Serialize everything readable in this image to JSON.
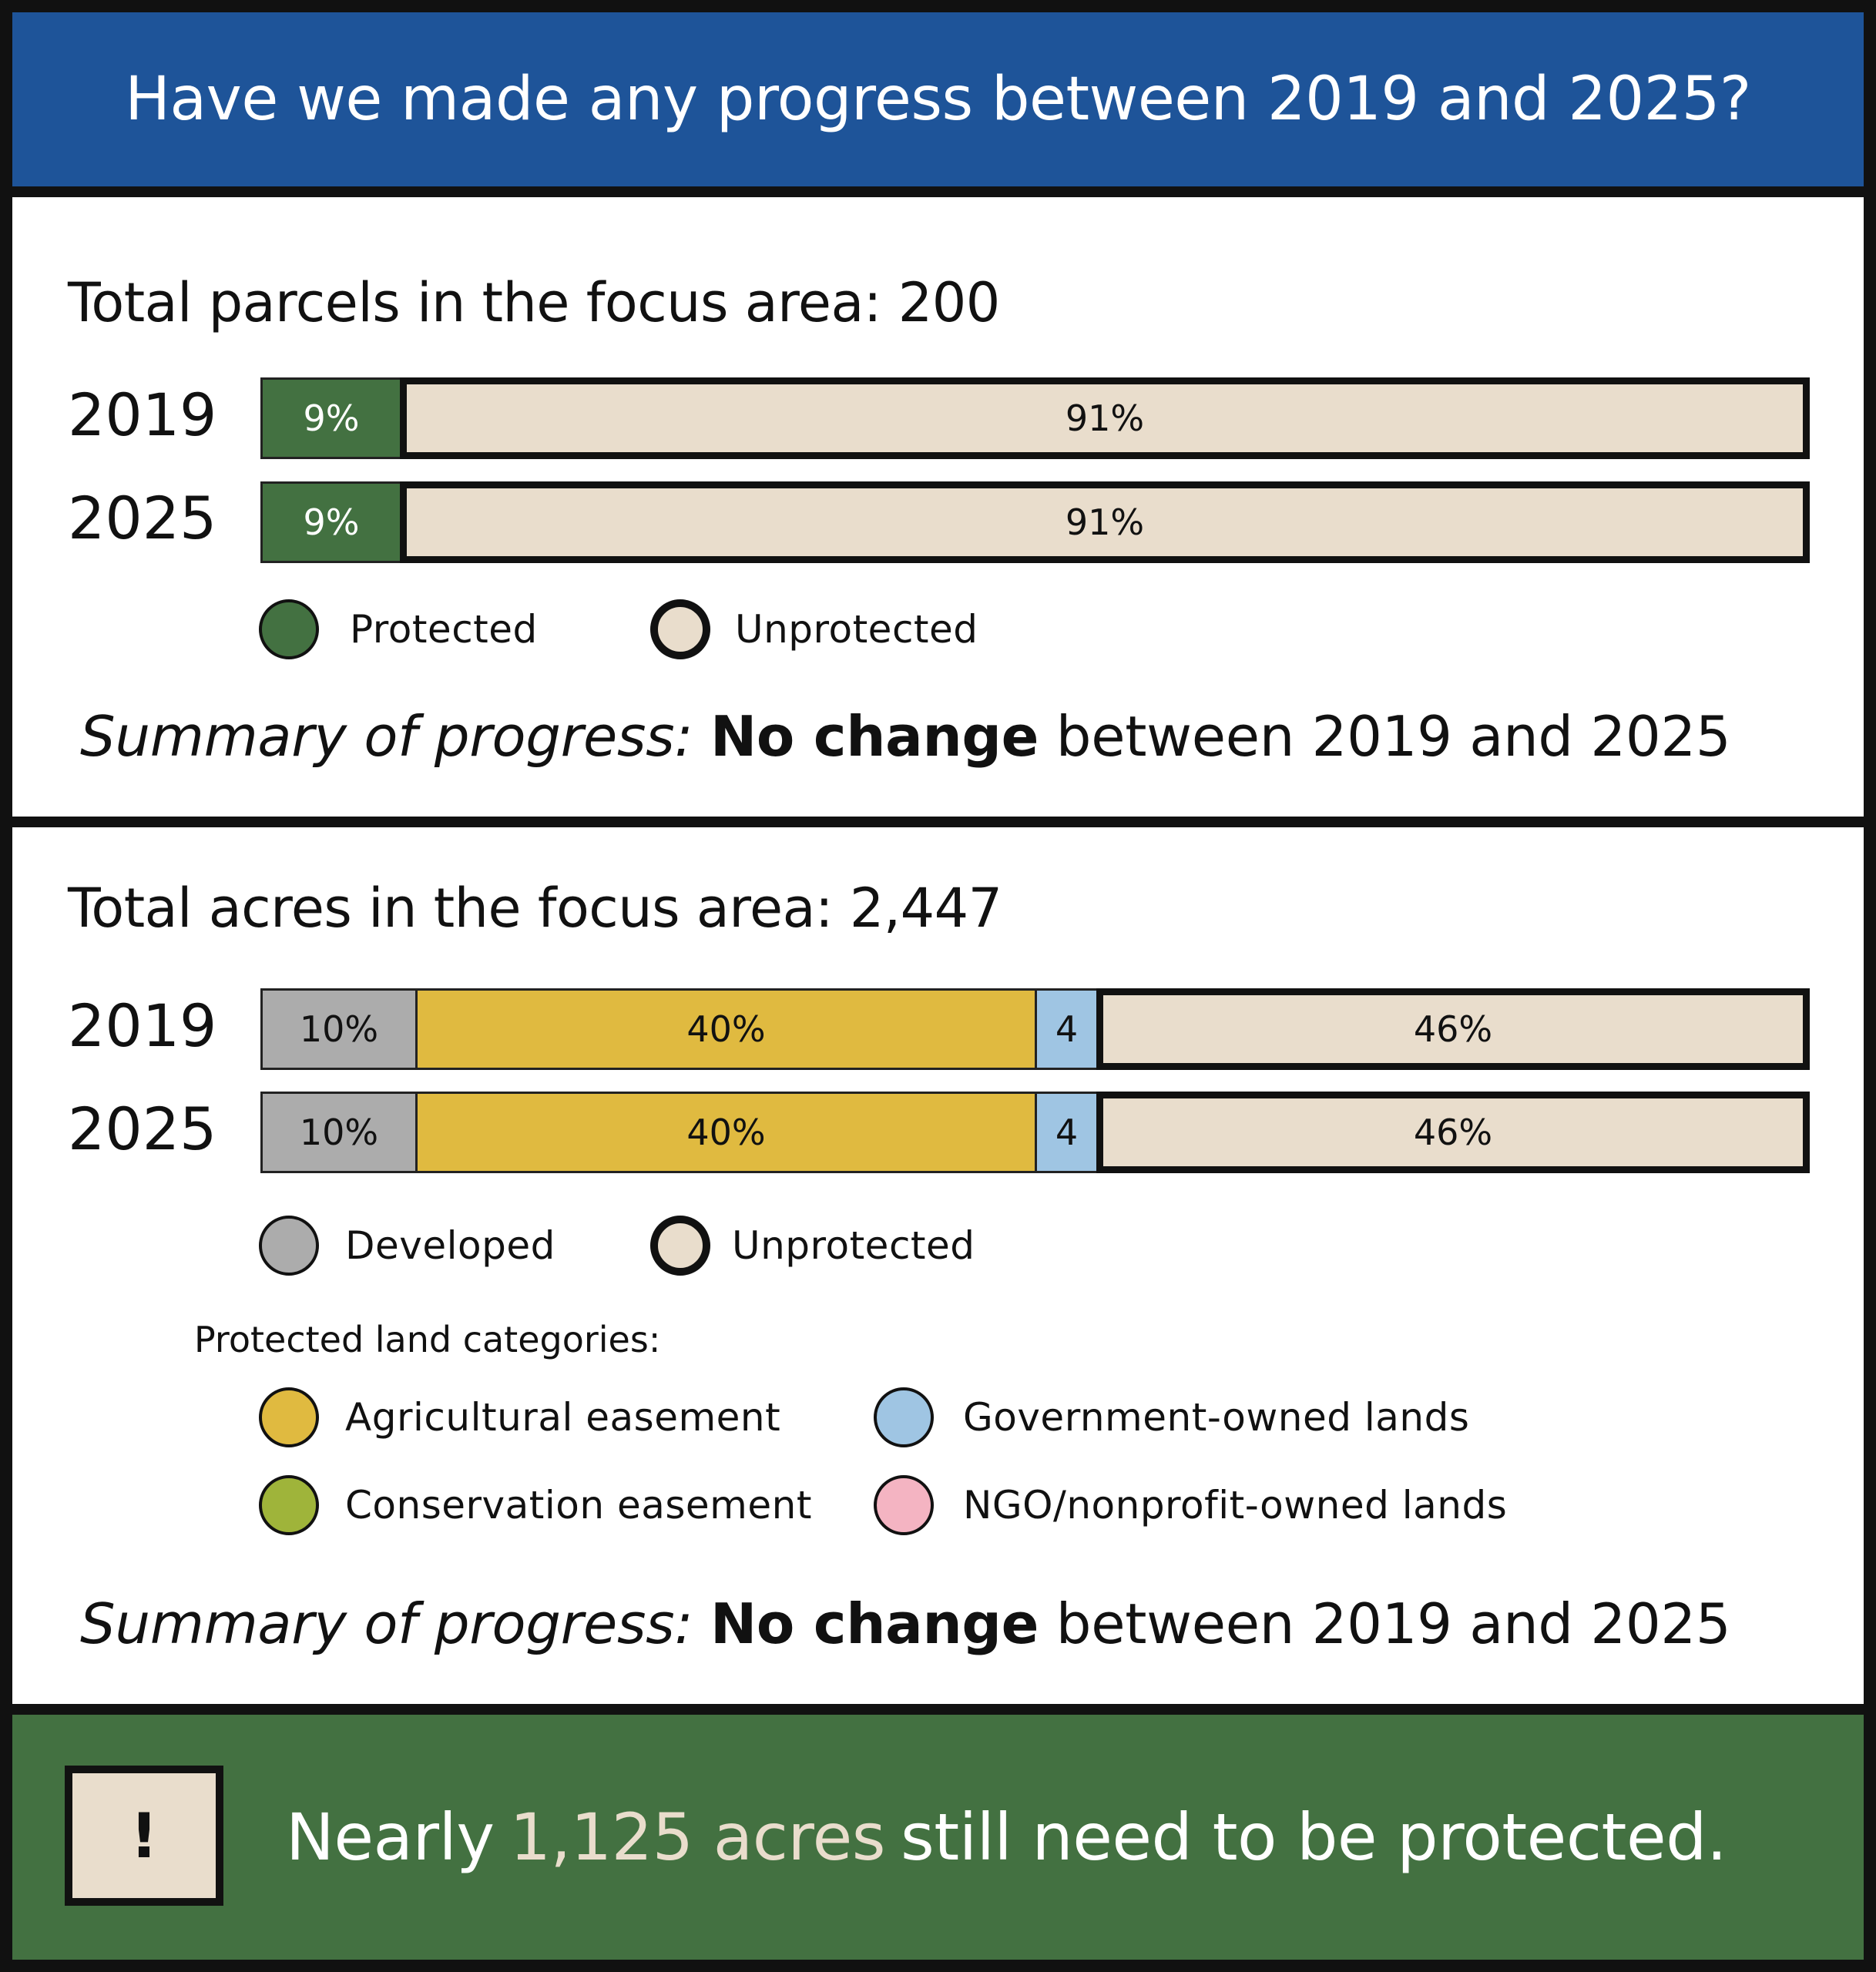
{
  "header": {
    "title": "Have we made any progress between 2019 and 2025?"
  },
  "colors": {
    "header_bg": "#1e5499",
    "protected": "#437141",
    "unprotected": "#e9ddcc",
    "developed": "#acacac",
    "agricultural": "#e0ba40",
    "government": "#9fc5e3",
    "conservation": "#9fb43a",
    "ngo": "#f4b4c2",
    "footer_bg": "#437141"
  },
  "parcels": {
    "title": "Total parcels in the focus area: 200",
    "legend": {
      "protected": "Protected",
      "unprotected": "Unprotected"
    },
    "summary": {
      "prefix": "Summary of progress:",
      "bold": "No change",
      "rest": "between 2019 and 2025"
    }
  },
  "acres": {
    "title": "Total acres in the focus area: 2,447",
    "legend": {
      "developed": "Developed",
      "unprotected": "Unprotected"
    },
    "categories_title": "Protected land categories:",
    "categories": {
      "agricultural": "Agricultural easement",
      "government": "Government-owned lands",
      "conservation": "Conservation easement",
      "ngo": "NGO/nonprofit-owned lands"
    },
    "summary": {
      "prefix": "Summary of progress:",
      "bold": "No change",
      "rest": "between 2019 and 2025"
    }
  },
  "footer": {
    "alert_symbol": "!",
    "pre": "Nearly",
    "highlight": "1,125 acres",
    "post": "still need to be protected."
  },
  "chart_data": [
    {
      "type": "bar",
      "title": "Total parcels in the focus area: 200",
      "categories": [
        "2019",
        "2025"
      ],
      "series": [
        {
          "name": "Protected",
          "values": [
            9,
            9
          ],
          "labels": [
            "9%",
            "9%"
          ]
        },
        {
          "name": "Unprotected",
          "values": [
            91,
            91
          ],
          "labels": [
            "91%",
            "91%"
          ]
        }
      ],
      "stacked": true,
      "orientation": "horizontal",
      "unit": "%"
    },
    {
      "type": "bar",
      "title": "Total acres in the focus area: 2,447",
      "categories": [
        "2019",
        "2025"
      ],
      "series": [
        {
          "name": "Developed",
          "values": [
            10,
            10
          ],
          "labels": [
            "10%",
            "10%"
          ]
        },
        {
          "name": "Agricultural easement",
          "values": [
            40,
            40
          ],
          "labels": [
            "40%",
            "40%"
          ]
        },
        {
          "name": "Government-owned lands",
          "values": [
            4,
            4
          ],
          "labels": [
            "4",
            "4"
          ]
        },
        {
          "name": "Unprotected",
          "values": [
            46,
            46
          ],
          "labels": [
            "46%",
            "46%"
          ]
        }
      ],
      "stacked": true,
      "orientation": "horizontal",
      "unit": "%"
    }
  ]
}
